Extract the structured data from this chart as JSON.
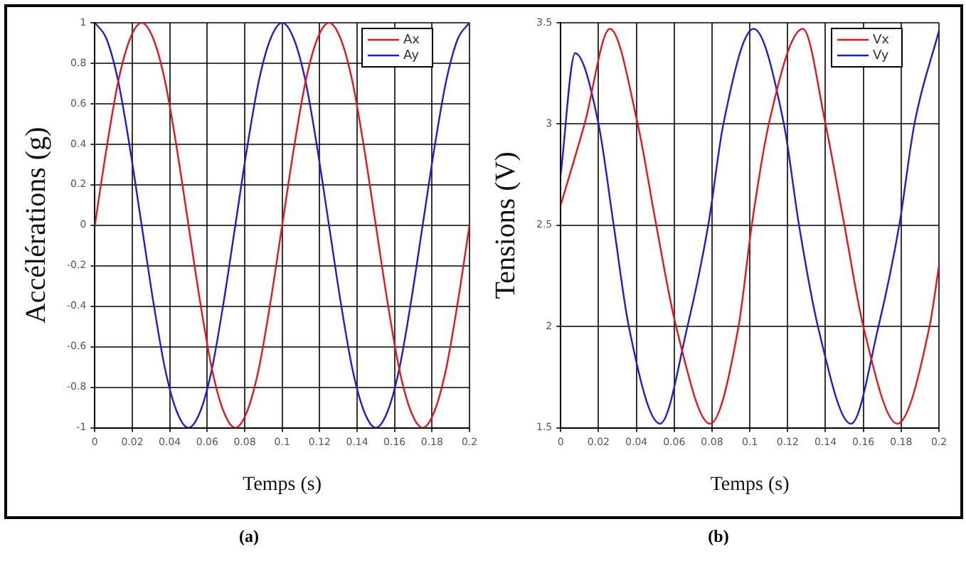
{
  "chart_data": [
    {
      "type": "line",
      "xlabel": "Temps (s)",
      "ylabel": "Accélérations (g)",
      "annotations": [
        "(a)"
      ],
      "xlim": [
        0,
        0.2
      ],
      "xticks": [
        0,
        0.02,
        0.04,
        0.06,
        0.08,
        0.1,
        0.12,
        0.14,
        0.16,
        0.18,
        0.2
      ],
      "ylim": [
        -1,
        1
      ],
      "yticks": [
        -1,
        -0.8,
        -0.6,
        -0.4,
        -0.2,
        0,
        0.2,
        0.4,
        0.6,
        0.8,
        1
      ],
      "grid": true,
      "legend": "top right",
      "line_style": "solid",
      "marker": "none",
      "series": [
        {
          "name": "Ax",
          "color": "#e8141c",
          "x": [
            0,
            0.00625,
            0.0125,
            0.01875,
            0.025,
            0.03125,
            0.0375,
            0.04375,
            0.05,
            0.05625,
            0.0625,
            0.06875,
            0.075,
            0.08125,
            0.0875,
            0.09375,
            0.1,
            0.10625,
            0.1125,
            0.11875,
            0.125,
            0.13125,
            0.1375,
            0.14375,
            0.15,
            0.15625,
            0.1625,
            0.16875,
            0.175,
            0.18125,
            0.1875,
            0.19375,
            0.2
          ],
          "values": [
            0,
            0.38,
            0.71,
            0.92,
            1,
            0.92,
            0.71,
            0.38,
            0,
            -0.38,
            -0.71,
            -0.92,
            -1,
            -0.92,
            -0.71,
            -0.38,
            0,
            0.38,
            0.71,
            0.92,
            1,
            0.92,
            0.71,
            0.38,
            0,
            -0.38,
            -0.71,
            -0.92,
            -1,
            -0.92,
            -0.71,
            -0.38,
            0
          ]
        },
        {
          "name": "Ay",
          "color": "#1c1ce0",
          "x": [
            0,
            0.00625,
            0.0125,
            0.01875,
            0.025,
            0.03125,
            0.0375,
            0.04375,
            0.05,
            0.05625,
            0.0625,
            0.06875,
            0.075,
            0.08125,
            0.0875,
            0.09375,
            0.1,
            0.10625,
            0.1125,
            0.11875,
            0.125,
            0.13125,
            0.1375,
            0.14375,
            0.15,
            0.15625,
            0.1625,
            0.16875,
            0.175,
            0.18125,
            0.1875,
            0.19375,
            0.2
          ],
          "values": [
            1,
            0.92,
            0.71,
            0.38,
            0,
            -0.38,
            -0.71,
            -0.92,
            -1,
            -0.92,
            -0.71,
            -0.38,
            0,
            0.38,
            0.71,
            0.92,
            1,
            0.92,
            0.71,
            0.38,
            0,
            -0.38,
            -0.71,
            -0.92,
            -1,
            -0.92,
            -0.71,
            -0.38,
            0,
            0.38,
            0.71,
            0.92,
            1
          ]
        }
      ]
    },
    {
      "type": "line",
      "xlabel": "Temps (s)",
      "ylabel": "Tensions (V)",
      "annotations": [
        "(b)"
      ],
      "xlim": [
        0,
        0.2
      ],
      "xticks": [
        0,
        0.02,
        0.04,
        0.06,
        0.08,
        0.1,
        0.12,
        0.14,
        0.16,
        0.18,
        0.2
      ],
      "ylim": [
        1.5,
        3.5
      ],
      "yticks": [
        1.5,
        2,
        2.5,
        3,
        3.5
      ],
      "grid": true,
      "legend": "top right",
      "line_style": "solid",
      "marker": "none",
      "series": [
        {
          "name": "Vx",
          "color": "#e8141c",
          "x": [
            0,
            0.0126,
            0.026,
            0.0407,
            0.0505,
            0.061,
            0.079,
            0.094,
            0.101,
            0.11,
            0.128,
            0.14,
            0.15,
            0.16,
            0.178,
            0.195,
            0.2
          ],
          "values": [
            2.6,
            3.0,
            3.47,
            3.0,
            2.5,
            2.0,
            1.52,
            2.0,
            2.5,
            3.0,
            3.47,
            3.0,
            2.5,
            2.0,
            1.52,
            2.0,
            2.3
          ]
        },
        {
          "name": "Vy",
          "color": "#1c1ce0",
          "x": [
            0,
            0.0076,
            0.02,
            0.028,
            0.036,
            0.0525,
            0.067,
            0.078,
            0.086,
            0.102,
            0.118,
            0.126,
            0.136,
            0.1535,
            0.168,
            0.179,
            0.187,
            0.2
          ],
          "values": [
            2.75,
            3.35,
            3.0,
            2.5,
            2.0,
            1.52,
            2.0,
            2.5,
            3.0,
            3.47,
            3.0,
            2.5,
            2.0,
            1.52,
            2.0,
            2.5,
            3.0,
            3.46
          ]
        }
      ]
    }
  ]
}
